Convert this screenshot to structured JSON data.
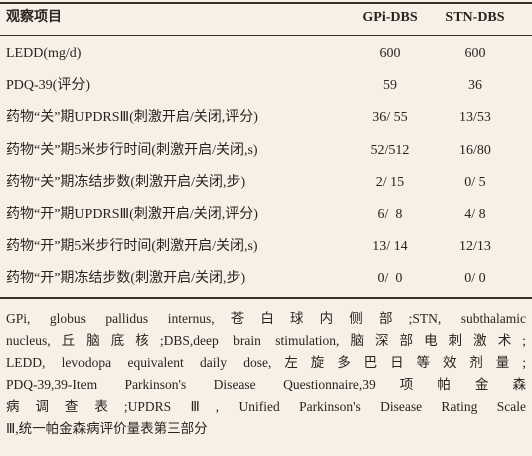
{
  "table": {
    "header": [
      "观察项目",
      "GPi-DBS",
      "STN-DBS"
    ],
    "rows": [
      [
        "LEDD(mg/d)",
        "600",
        "600"
      ],
      [
        "PDQ-39(评分)",
        "59",
        "36"
      ],
      [
        "药物“关”期UPDRSⅢ(刺激开启/关闭,评分)",
        "36/ 55",
        "13/53"
      ],
      [
        "药物“关”期5米步行时间(刺激开启/关闭,s)",
        "52/512",
        "16/80"
      ],
      [
        "药物“关”期冻结步数(刺激开启/关闭,步)",
        "2/ 15",
        "0/ 5"
      ],
      [
        "药物“开”期UPDRSⅢ(刺激开启/关闭,评分)",
        "6/  8",
        "4/ 8"
      ],
      [
        "药物“开”期5米步行时间(刺激开启/关闭,s)",
        "13/ 14",
        "12/13"
      ],
      [
        "药物“开”期冻结步数(刺激开启/关闭,步)",
        "0/  0",
        "0/ 0"
      ]
    ]
  },
  "footnote": [
    "GPi, globus pallidus internus,苍白球内侧部;STN, subthalamic",
    "nucleus,丘脑底核;DBS,deep brain stimulation,脑深部电刺激术;",
    "LEDD, levodopa equivalent daily dose,左旋多巴日等效剂量;",
    "PDQ-39,39-Item Parkinson's Disease Questionnaire,39项帕金森",
    "病调查表;UPDRS Ⅲ, Unified Parkinson's Disease Rating Scale",
    "Ⅲ,统一帕金森病评价量表第三部分"
  ]
}
